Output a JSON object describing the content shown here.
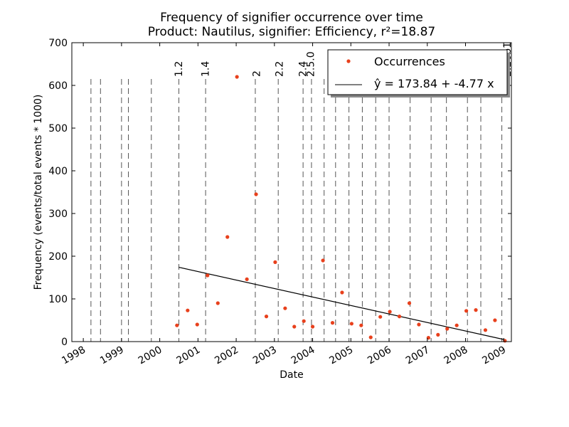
{
  "chart_data": {
    "type": "scatter",
    "title": "Frequency of signifier occurrence over time",
    "subtitle": "Product: Nautilus, signifier: Efficiency, r²=18.87",
    "xlabel": "Date",
    "ylabel": "Frequency (events/total events * 1000)",
    "xlim": [
      1997.7,
      2009.2
    ],
    "ylim": [
      0,
      700
    ],
    "y_ticks": [
      0,
      100,
      200,
      300,
      400,
      500,
      600,
      700
    ],
    "x_ticks": [
      1998,
      1999,
      2000,
      2001,
      2002,
      2003,
      2004,
      2005,
      2006,
      2007,
      2008,
      2009
    ],
    "x_tick_labels": [
      "1998",
      "1999",
      "2000",
      "2001",
      "2002",
      "2003",
      "2004",
      "2005",
      "2006",
      "2007",
      "2008",
      "2009"
    ],
    "series": [
      {
        "name": "Occurrences",
        "color": "#e8401c",
        "x": [
          2000.45,
          2000.73,
          2000.98,
          2001.25,
          2001.52,
          2001.77,
          2002.02,
          2002.28,
          2002.52,
          2002.79,
          2003.02,
          2003.28,
          2003.52,
          2003.77,
          2004.0,
          2004.27,
          2004.52,
          2004.77,
          2005.02,
          2005.27,
          2005.52,
          2005.77,
          2006.02,
          2006.27,
          2006.53,
          2006.78,
          2007.03,
          2007.28,
          2007.52,
          2007.77,
          2008.02,
          2008.27,
          2008.52,
          2008.77,
          2009.03
        ],
        "y": [
          38,
          73,
          40,
          155,
          90,
          245,
          620,
          146,
          345,
          59,
          186,
          78,
          35,
          48,
          35,
          190,
          44,
          115,
          42,
          38,
          10,
          58,
          70,
          59,
          90,
          40,
          9,
          16,
          30,
          38,
          72,
          74,
          27,
          50,
          2
        ]
      }
    ],
    "fit": {
      "label": "ŷ = 173.84 + -4.77 x",
      "color": "#000000",
      "x": [
        2000.5,
        2009.0
      ],
      "y": [
        174,
        5
      ]
    },
    "release_lines": {
      "x": [
        1998.2,
        1998.45,
        1999.0,
        1999.18,
        1999.78,
        2000.5,
        2001.2,
        2002.5,
        2003.1,
        2003.75,
        2003.97,
        2004.3,
        2004.6,
        2004.95,
        2005.3,
        2005.65,
        2006.0,
        2006.55,
        2007.1,
        2007.5,
        2008.05,
        2008.4,
        2008.95
      ],
      "labels": [
        {
          "text": "1.2",
          "x": 2000.58
        },
        {
          "text": "1.4",
          "x": 2001.28
        },
        {
          "text": "2",
          "x": 2002.62
        },
        {
          "text": "2.2",
          "x": 2003.22
        },
        {
          "text": "2.4",
          "x": 2003.83
        },
        {
          "text": "2.5.0",
          "x": 2004.04
        },
        {
          "text": "2.26b1",
          "x": 2009.18
        }
      ]
    },
    "legend": {
      "position": "top-right",
      "entries": [
        "Occurrences",
        "ŷ = 173.84 + -4.77 x"
      ]
    }
  }
}
